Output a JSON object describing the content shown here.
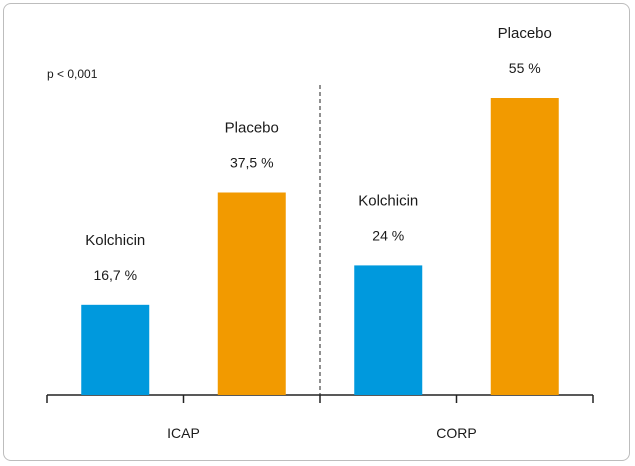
{
  "chart_data": {
    "type": "bar",
    "groups": [
      {
        "label": "ICAP",
        "bars": [
          {
            "name": "Kolchicin",
            "value": 16.7,
            "value_label": "16,7 %",
            "color": "#0099dd"
          },
          {
            "name": "Placebo",
            "value": 37.5,
            "value_label": "37,5 %",
            "color": "#f29a00"
          }
        ]
      },
      {
        "label": "CORP",
        "bars": [
          {
            "name": "Kolchicin",
            "value": 24,
            "value_label": "24 %",
            "color": "#0099dd"
          },
          {
            "name": "Placebo",
            "value": 55,
            "value_label": "55 %",
            "color": "#f29a00"
          }
        ]
      }
    ],
    "annotation": "p < 0,001",
    "ylim": [
      0,
      55
    ],
    "grid": false,
    "legend": "none"
  }
}
